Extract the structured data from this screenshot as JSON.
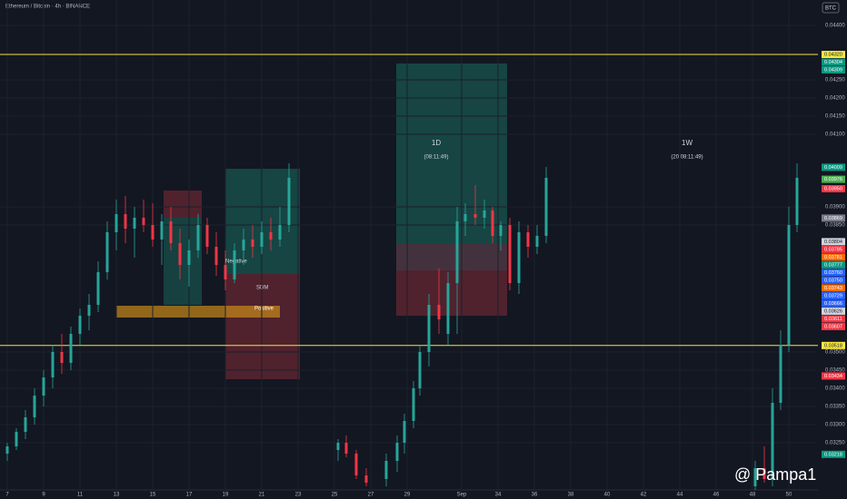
{
  "chart_data": {
    "type": "candlestick",
    "title": "Ethereum / Bitcoin · 4h · BINANCE",
    "currency": "BTC",
    "watermark": "@ Pampa1",
    "annotations": [
      "1D",
      "(08:11:49)",
      "1W",
      "(20 08:11:49)",
      "Negative",
      "Positive",
      "SDM"
    ],
    "x": [
      7,
      7.5,
      8,
      8.5,
      9,
      9.5,
      10,
      10.5,
      11,
      11.5,
      12,
      12.5,
      13,
      13.5,
      14,
      14.5,
      15,
      15.5,
      16,
      16.5,
      17,
      17.5,
      18,
      18.5,
      19,
      19.5,
      20,
      20.5,
      21,
      21.5,
      22,
      22.5,
      25.2,
      25.65,
      26.2,
      26.75,
      27.85,
      28.45,
      28.85,
      29.35,
      29.7,
      30.2,
      30.75,
      31.25,
      31.75,
      32.2,
      32.75,
      33.25,
      33.7,
      34.15,
      34.65,
      35.15,
      35.65,
      36.15,
      36.65,
      48.15,
      48.65,
      49.1,
      49.55,
      50,
      50.45
    ],
    "open": [
      0.0322,
      0.0324,
      0.0328,
      0.0332,
      0.0338,
      0.0343,
      0.035,
      0.0347,
      0.0355,
      0.036,
      0.0363,
      0.0372,
      0.0383,
      0.0388,
      0.0384,
      0.0387,
      0.0385,
      0.0381,
      0.0386,
      0.038,
      0.0374,
      0.0378,
      0.0385,
      0.0379,
      0.0374,
      0.037,
      0.0378,
      0.0381,
      0.0379,
      0.0383,
      0.0381,
      0.0385,
      0.0323,
      0.0325,
      0.0322,
      0.0316,
      0.0315,
      0.032,
      0.0325,
      0.0331,
      0.034,
      0.035,
      0.0363,
      0.0355,
      0.0369,
      0.0386,
      0.0388,
      0.0387,
      0.0389,
      0.0382,
      0.0385,
      0.0369,
      0.0383,
      0.0379,
      0.0382,
      0.0313,
      0.0318,
      0.0315,
      0.0336,
      0.0352,
      0.0385
    ],
    "high": [
      0.0325,
      0.0329,
      0.0334,
      0.034,
      0.0345,
      0.0352,
      0.0355,
      0.0357,
      0.0362,
      0.0366,
      0.0375,
      0.0386,
      0.0392,
      0.0393,
      0.039,
      0.0392,
      0.0391,
      0.0388,
      0.039,
      0.0384,
      0.0381,
      0.0388,
      0.0387,
      0.0383,
      0.0378,
      0.038,
      0.0384,
      0.0385,
      0.0386,
      0.0387,
      0.039,
      0.0402,
      0.0326,
      0.0327,
      0.0323,
      0.0318,
      0.0322,
      0.0327,
      0.0333,
      0.0342,
      0.0352,
      0.0366,
      0.0373,
      0.0372,
      0.039,
      0.0391,
      0.0396,
      0.0392,
      0.039,
      0.0386,
      0.0387,
      0.0386,
      0.0385,
      0.0385,
      0.0401,
      0.032,
      0.0324,
      0.034,
      0.0356,
      0.039,
      0.0402
    ],
    "low": [
      0.032,
      0.0323,
      0.0326,
      0.033,
      0.0335,
      0.034,
      0.0344,
      0.0345,
      0.0352,
      0.0356,
      0.0361,
      0.037,
      0.0378,
      0.038,
      0.0376,
      0.0383,
      0.0379,
      0.0374,
      0.0378,
      0.037,
      0.0368,
      0.0376,
      0.0377,
      0.0371,
      0.0367,
      0.0369,
      0.0374,
      0.0376,
      0.0377,
      0.0378,
      0.0379,
      0.0383,
      0.032,
      0.0321,
      0.0315,
      0.0313,
      0.0313,
      0.0317,
      0.0322,
      0.0329,
      0.0338,
      0.0346,
      0.0355,
      0.0352,
      0.0355,
      0.0382,
      0.0385,
      0.0384,
      0.038,
      0.0378,
      0.0367,
      0.0366,
      0.0376,
      0.0377,
      0.038,
      0.0312,
      0.0314,
      0.0313,
      0.0334,
      0.035,
      0.0383
    ],
    "close": [
      0.0324,
      0.0328,
      0.0332,
      0.0338,
      0.0343,
      0.035,
      0.0347,
      0.0355,
      0.036,
      0.0363,
      0.0372,
      0.0383,
      0.0388,
      0.0384,
      0.0387,
      0.0385,
      0.0381,
      0.0386,
      0.038,
      0.0374,
      0.0378,
      0.0385,
      0.0379,
      0.0374,
      0.037,
      0.0378,
      0.0381,
      0.0379,
      0.0383,
      0.0381,
      0.0385,
      0.0398,
      0.0325,
      0.0322,
      0.0316,
      0.0314,
      0.032,
      0.0325,
      0.0331,
      0.034,
      0.035,
      0.0363,
      0.0359,
      0.0369,
      0.0386,
      0.0388,
      0.0387,
      0.0389,
      0.0382,
      0.0385,
      0.0369,
      0.0383,
      0.0379,
      0.0382,
      0.0398,
      0.0318,
      0.0315,
      0.0336,
      0.0352,
      0.0385,
      0.0398
    ],
    "up_color": "#26a69a",
    "down_color": "#f23645",
    "xlim": [
      6.6,
      51.5
    ],
    "xticks": [
      7,
      9,
      11,
      13,
      15,
      17,
      19,
      21,
      23,
      25,
      27,
      29,
      {
        "value": 32,
        "label": "Sep"
      },
      34,
      36,
      38,
      40,
      42,
      44,
      46,
      48,
      50
    ],
    "xtick_labels_override": null,
    "ylim": [
      0.0312,
      0.0447
    ],
    "yticks": [
      {
        "value": 0.044,
        "label": "0.04400"
      },
      {
        "value": 0.0425,
        "label": "0.04250"
      },
      {
        "value": 0.042,
        "label": "0.04200"
      },
      {
        "value": 0.0415,
        "label": "0.04150"
      },
      {
        "value": 0.041,
        "label": "0.04100"
      },
      {
        "value": 0.039,
        "label": "0.03900"
      },
      {
        "value": 0.0385,
        "label": "0.03850"
      },
      {
        "value": 0.035,
        "label": "0.03500"
      },
      {
        "value": 0.0345,
        "label": "0.03450"
      },
      {
        "value": 0.034,
        "label": "0.03400"
      },
      {
        "value": 0.0335,
        "label": "0.03350"
      },
      {
        "value": 0.033,
        "label": "0.03300"
      },
      {
        "value": 0.0325,
        "label": "0.03250"
      }
    ],
    "grid": true,
    "levels": [
      {
        "value": 0.0432,
        "label": "0.04320",
        "color": "#f5e642"
      },
      {
        "value": 0.03518,
        "label": "0.03518",
        "color": "#f5e642"
      }
    ],
    "price_markers": [
      {
        "value": 0.04304,
        "label": "0.04304",
        "color": "#089981"
      },
      {
        "value": 0.04309,
        "label": "0.04309",
        "color": "#089981"
      },
      {
        "value": 0.04009,
        "label": "0.04009",
        "color": "#089981"
      },
      {
        "value": 0.03976,
        "label": "0.03976",
        "color": "#4caf50"
      },
      {
        "value": 0.0395,
        "label": "0.03950",
        "color": "#f23645"
      },
      {
        "value": 0.03869,
        "label": "0.03869",
        "color": "#787b86"
      },
      {
        "value": 0.03804,
        "label": "0.03804",
        "color": "#d1d4dc"
      },
      {
        "value": 0.03785,
        "label": "0.03785",
        "color": "#f23645"
      },
      {
        "value": 0.03781,
        "label": "0.03781",
        "color": "#ff6d00"
      },
      {
        "value": 0.03777,
        "label": "0.03777",
        "color": "#089981"
      },
      {
        "value": 0.0376,
        "label": "0.03760",
        "color": "#2962ff"
      },
      {
        "value": 0.0375,
        "label": "0.03750",
        "color": "#2962ff"
      },
      {
        "value": 0.03743,
        "label": "0.03743",
        "color": "#ff6d00"
      },
      {
        "value": 0.03729,
        "label": "0.03729",
        "color": "#2962ff"
      },
      {
        "value": 0.03666,
        "label": "0.03666",
        "color": "#2962ff"
      },
      {
        "value": 0.03626,
        "label": "0.03626",
        "color": "#d1d4dc"
      },
      {
        "value": 0.03611,
        "label": "0.03611",
        "color": "#f23645"
      },
      {
        "value": 0.03607,
        "label": "0.03607",
        "color": "#f23645"
      },
      {
        "value": 0.03434,
        "label": "0.03434",
        "color": "#f23645"
      },
      {
        "value": 0.03218,
        "label": "0.03218",
        "color": "#089981"
      }
    ]
  }
}
